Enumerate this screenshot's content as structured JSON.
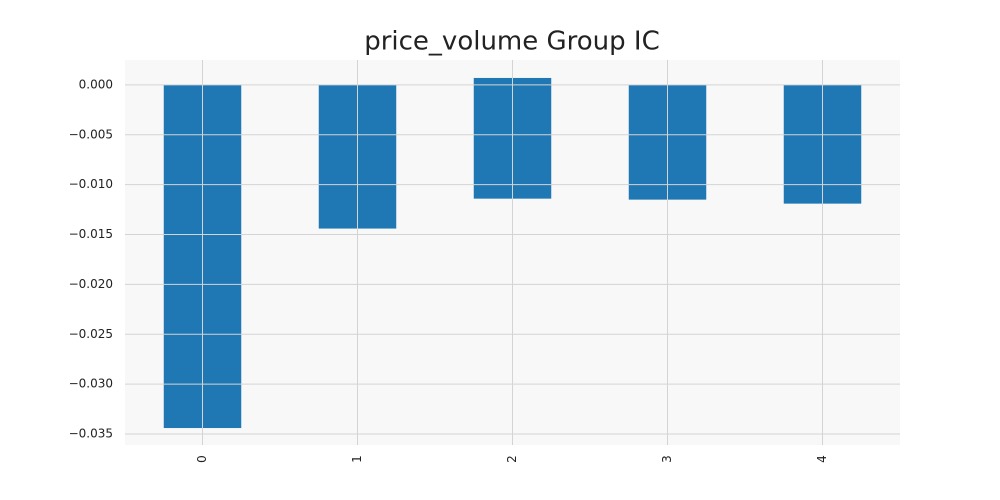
{
  "chart_data": {
    "type": "bar",
    "title": "price_volume Group IC",
    "categories": [
      "0",
      "1",
      "2",
      "3",
      "4"
    ],
    "series": [
      {
        "color": "#1f77b4",
        "values": [
          -0.0344,
          -0.0144,
          -0.0114,
          -0.0115,
          -0.0119
        ]
      },
      {
        "color": "#1f77b4",
        "values": [
          0,
          0,
          0.0007,
          0,
          0
        ]
      }
    ],
    "stacked": true,
    "ylim": [
      -0.0361,
      0.0025
    ],
    "yticks": [
      {
        "value": 0,
        "label": "0.000"
      },
      {
        "value": -0.005,
        "label": "−0.005"
      },
      {
        "value": -0.01,
        "label": "−0.010"
      },
      {
        "value": -0.015,
        "label": "−0.015"
      },
      {
        "value": -0.02,
        "label": "−0.020"
      },
      {
        "value": -0.025,
        "label": "−0.025"
      },
      {
        "value": -0.03,
        "label": "−0.030"
      },
      {
        "value": -0.035,
        "label": "−0.035"
      }
    ],
    "grid": true
  }
}
